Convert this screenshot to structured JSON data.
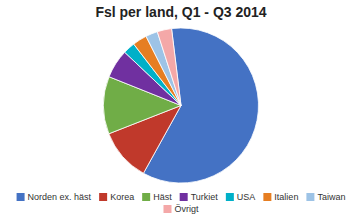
{
  "chart_data": {
    "type": "pie",
    "title": "Fsl per land, Q1 - Q3 2014",
    "categories": [
      "Norden ex. häst",
      "Korea",
      "Häst",
      "Turkiet",
      "USA",
      "Italien",
      "Taiwan",
      "Övrigt"
    ],
    "values": [
      60,
      11,
      12,
      6,
      2.5,
      3,
      2.5,
      3
    ],
    "colors": [
      "#4472C4",
      "#C0392B",
      "#70AD47",
      "#7030A0",
      "#00B0C8",
      "#E67E22",
      "#9DC3E6",
      "#F4A8A8"
    ],
    "legend": "bottom"
  }
}
